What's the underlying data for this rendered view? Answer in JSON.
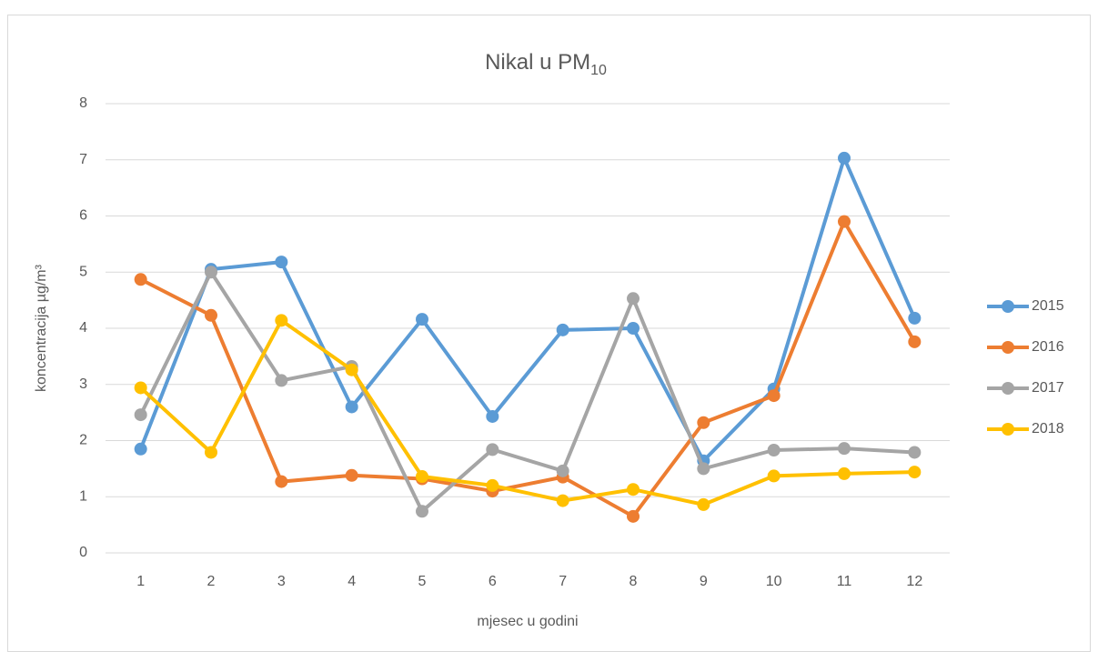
{
  "chart_data": {
    "type": "line",
    "title": "Nikal u PM",
    "title_subscript": "10",
    "x_label": "mjesec u godini",
    "y_label": "koncentracija µg/m³",
    "categories": [
      1,
      2,
      3,
      4,
      5,
      6,
      7,
      8,
      9,
      10,
      11,
      12
    ],
    "series": [
      {
        "name": "2015",
        "color": "#5b9bd5",
        "values": [
          1.85,
          5.05,
          5.18,
          2.6,
          4.16,
          2.43,
          3.97,
          4.0,
          1.64,
          2.92,
          7.03,
          4.18
        ]
      },
      {
        "name": "2016",
        "color": "#ed7d31",
        "values": [
          4.87,
          4.23,
          1.27,
          1.38,
          1.32,
          1.1,
          1.35,
          0.65,
          2.32,
          2.8,
          5.9,
          3.76
        ]
      },
      {
        "name": "2017",
        "color": "#a5a5a5",
        "values": [
          2.46,
          5.0,
          3.07,
          3.32,
          0.74,
          1.84,
          1.46,
          4.53,
          1.5,
          1.83,
          1.86,
          1.79
        ]
      },
      {
        "name": "2018",
        "color": "#ffc000",
        "values": [
          2.94,
          1.79,
          4.14,
          3.26,
          1.36,
          1.2,
          0.93,
          1.13,
          0.86,
          1.37,
          1.41,
          1.44
        ]
      }
    ],
    "ylim": [
      0,
      8
    ],
    "yticks": [
      0,
      1,
      2,
      3,
      4,
      5,
      6,
      7,
      8
    ],
    "grid": true,
    "legend": "right"
  }
}
